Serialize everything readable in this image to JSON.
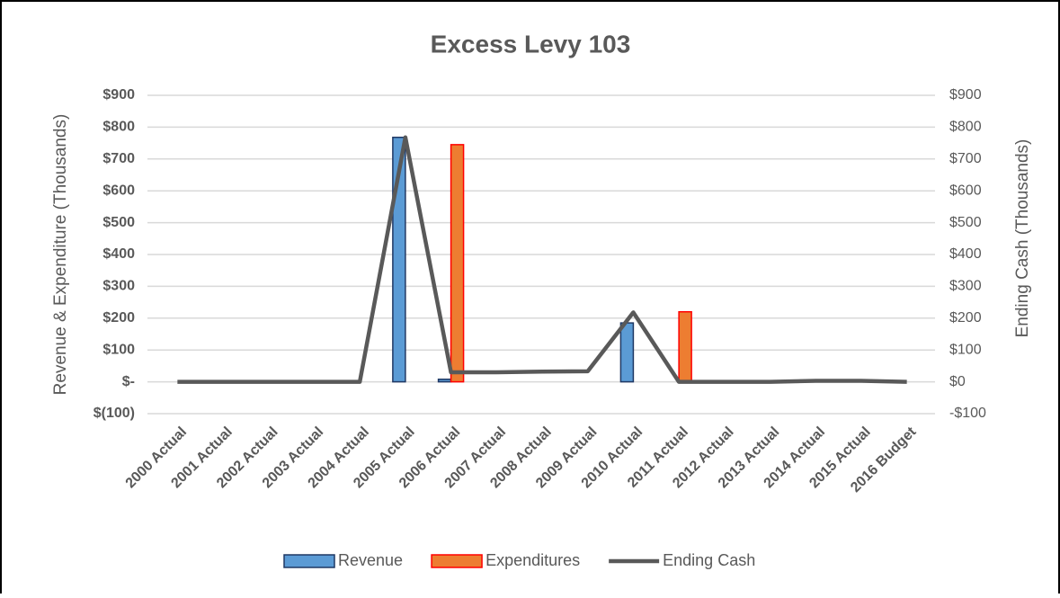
{
  "chart_data": {
    "type": "bar",
    "title": "Excess Levy 103",
    "y_label": "Revenue & Expenditure (Thousands)",
    "y2_label": "Ending Cash (Thousands)",
    "categories": [
      "2000 Actual",
      "2001 Actual",
      "2002 Actual",
      "2003 Actual",
      "2004 Actual",
      "2005 Actual",
      "2006 Actual",
      "2007 Actual",
      "2008 Actual",
      "2009 Actual",
      "2010 Actual",
      "2011 Actual",
      "2012 Actual",
      "2013 Actual",
      "2014 Actual",
      "2015 Actual",
      "2016 Budget"
    ],
    "series": [
      {
        "name": "Revenue",
        "type": "bar",
        "color": "#5b9bd5",
        "edge": "#1f3864",
        "values": [
          0,
          0,
          0,
          0,
          0,
          768,
          8,
          0,
          0,
          0,
          185,
          0,
          0,
          0,
          0,
          0,
          0
        ]
      },
      {
        "name": "Expenditures",
        "type": "bar",
        "color": "#ed7d31",
        "edge": "#ff0000",
        "values": [
          0,
          0,
          0,
          0,
          0,
          0,
          745,
          0,
          0,
          0,
          0,
          220,
          0,
          0,
          0,
          0,
          0
        ]
      },
      {
        "name": "Ending Cash",
        "type": "line",
        "axis": "y2",
        "color": "#595959",
        "values": [
          0,
          0,
          0,
          0,
          0,
          768,
          30,
          30,
          32,
          33,
          218,
          0,
          0,
          0,
          3,
          3,
          0
        ]
      }
    ],
    "ylim": [
      -100,
      900
    ],
    "yticks": [
      {
        "value": -100,
        "label": "$(100)"
      },
      {
        "value": 0,
        "label": "$-"
      },
      {
        "value": 100,
        "label": "$100"
      },
      {
        "value": 200,
        "label": "$200"
      },
      {
        "value": 300,
        "label": "$300"
      },
      {
        "value": 400,
        "label": "$400"
      },
      {
        "value": 500,
        "label": "$500"
      },
      {
        "value": 600,
        "label": "$600"
      },
      {
        "value": 700,
        "label": "$700"
      },
      {
        "value": 800,
        "label": "$800"
      },
      {
        "value": 900,
        "label": "$900"
      }
    ],
    "y2lim": [
      -100,
      900
    ],
    "y2ticks": [
      {
        "value": -100,
        "label": "-$100"
      },
      {
        "value": 0,
        "label": "$0"
      },
      {
        "value": 100,
        "label": "$100"
      },
      {
        "value": 200,
        "label": "$200"
      },
      {
        "value": 300,
        "label": "$300"
      },
      {
        "value": 400,
        "label": "$400"
      },
      {
        "value": 500,
        "label": "$500"
      },
      {
        "value": 600,
        "label": "$600"
      },
      {
        "value": 700,
        "label": "$700"
      },
      {
        "value": 800,
        "label": "$800"
      },
      {
        "value": 900,
        "label": "$900"
      }
    ],
    "grid": true,
    "legend": "bottom"
  }
}
